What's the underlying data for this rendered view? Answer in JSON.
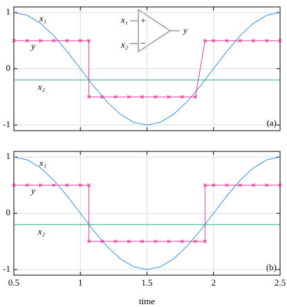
{
  "chart_data": [
    {
      "type": "line",
      "xlim": [
        0.5,
        2.5
      ],
      "ylim": [
        -1.1,
        1.1
      ],
      "xticks": [
        0.5,
        1,
        1.5,
        2,
        2.5
      ],
      "yticks": [
        -1,
        0,
        1
      ],
      "grid": true,
      "series": [
        {
          "name": "x₁",
          "color": "#3a8fd9",
          "x": [
            0.5,
            0.6,
            0.7,
            0.8,
            0.9,
            1.0,
            1.1,
            1.2,
            1.3,
            1.4,
            1.5,
            1.6,
            1.7,
            1.8,
            1.9,
            2.0,
            2.1,
            2.2,
            2.3,
            2.4,
            2.5
          ],
          "values": [
            1,
            0.951,
            0.809,
            0.588,
            0.309,
            0,
            -0.309,
            -0.588,
            -0.809,
            -0.951,
            -1,
            -0.951,
            -0.809,
            -0.588,
            -0.309,
            0,
            0.309,
            0.588,
            0.809,
            0.951,
            1
          ]
        },
        {
          "name": "y",
          "color": "#e0339a",
          "markers": true,
          "x": [
            0.5,
            0.6,
            0.7,
            0.8,
            0.9,
            1.0,
            1.064,
            1.064,
            1.164,
            1.264,
            1.364,
            1.464,
            1.564,
            1.664,
            1.764,
            1.864,
            1.936,
            2.0,
            2.1,
            2.2,
            2.3,
            2.4,
            2.5
          ],
          "values": [
            0.5,
            0.5,
            0.5,
            0.5,
            0.5,
            0.5,
            0.5,
            -0.5,
            -0.5,
            -0.5,
            -0.5,
            -0.5,
            -0.5,
            -0.5,
            -0.5,
            -0.5,
            0.5,
            0.5,
            0.5,
            0.5,
            0.5,
            0.5,
            0.5
          ]
        },
        {
          "name": "x₂",
          "color": "#22a88a",
          "x": [
            0.5,
            2.5
          ],
          "values": [
            -0.2,
            -0.2
          ]
        }
      ],
      "panel_label": "(a)",
      "inset_labels": [
        "x₁",
        "x₂",
        "y",
        "+",
        "−"
      ]
    },
    {
      "type": "line",
      "xlim": [
        0.5,
        2.5
      ],
      "ylim": [
        -1.1,
        1.1
      ],
      "xticks": [
        0.5,
        1,
        1.5,
        2,
        2.5
      ],
      "yticks": [
        -1,
        0,
        1
      ],
      "grid": true,
      "xlabel": "time",
      "series": [
        {
          "name": "x₁",
          "color": "#3a8fd9",
          "x": [
            0.5,
            0.6,
            0.7,
            0.8,
            0.9,
            1.0,
            1.1,
            1.2,
            1.3,
            1.4,
            1.5,
            1.6,
            1.7,
            1.8,
            1.9,
            2.0,
            2.1,
            2.2,
            2.3,
            2.4,
            2.5
          ],
          "values": [
            1,
            0.951,
            0.809,
            0.588,
            0.309,
            0,
            -0.309,
            -0.588,
            -0.809,
            -0.951,
            -1,
            -0.951,
            -0.809,
            -0.588,
            -0.309,
            0,
            0.309,
            0.588,
            0.809,
            0.951,
            1
          ]
        },
        {
          "name": "y",
          "color": "#e0339a",
          "markers": true,
          "x": [
            0.5,
            0.6,
            0.7,
            0.8,
            0.9,
            1.0,
            1.064,
            1.064,
            1.164,
            1.264,
            1.364,
            1.464,
            1.564,
            1.664,
            1.764,
            1.864,
            1.936,
            1.936,
            2.0,
            2.1,
            2.2,
            2.3,
            2.4,
            2.5
          ],
          "values": [
            0.5,
            0.5,
            0.5,
            0.5,
            0.5,
            0.5,
            0.5,
            -0.5,
            -0.5,
            -0.5,
            -0.5,
            -0.5,
            -0.5,
            -0.5,
            -0.5,
            -0.5,
            -0.5,
            0.5,
            0.5,
            0.5,
            0.5,
            0.5,
            0.5,
            0.5
          ]
        },
        {
          "name": "x₂",
          "color": "#22a88a",
          "x": [
            0.5,
            2.5
          ],
          "values": [
            -0.2,
            -0.2
          ]
        }
      ],
      "panel_label": "(b)"
    }
  ]
}
